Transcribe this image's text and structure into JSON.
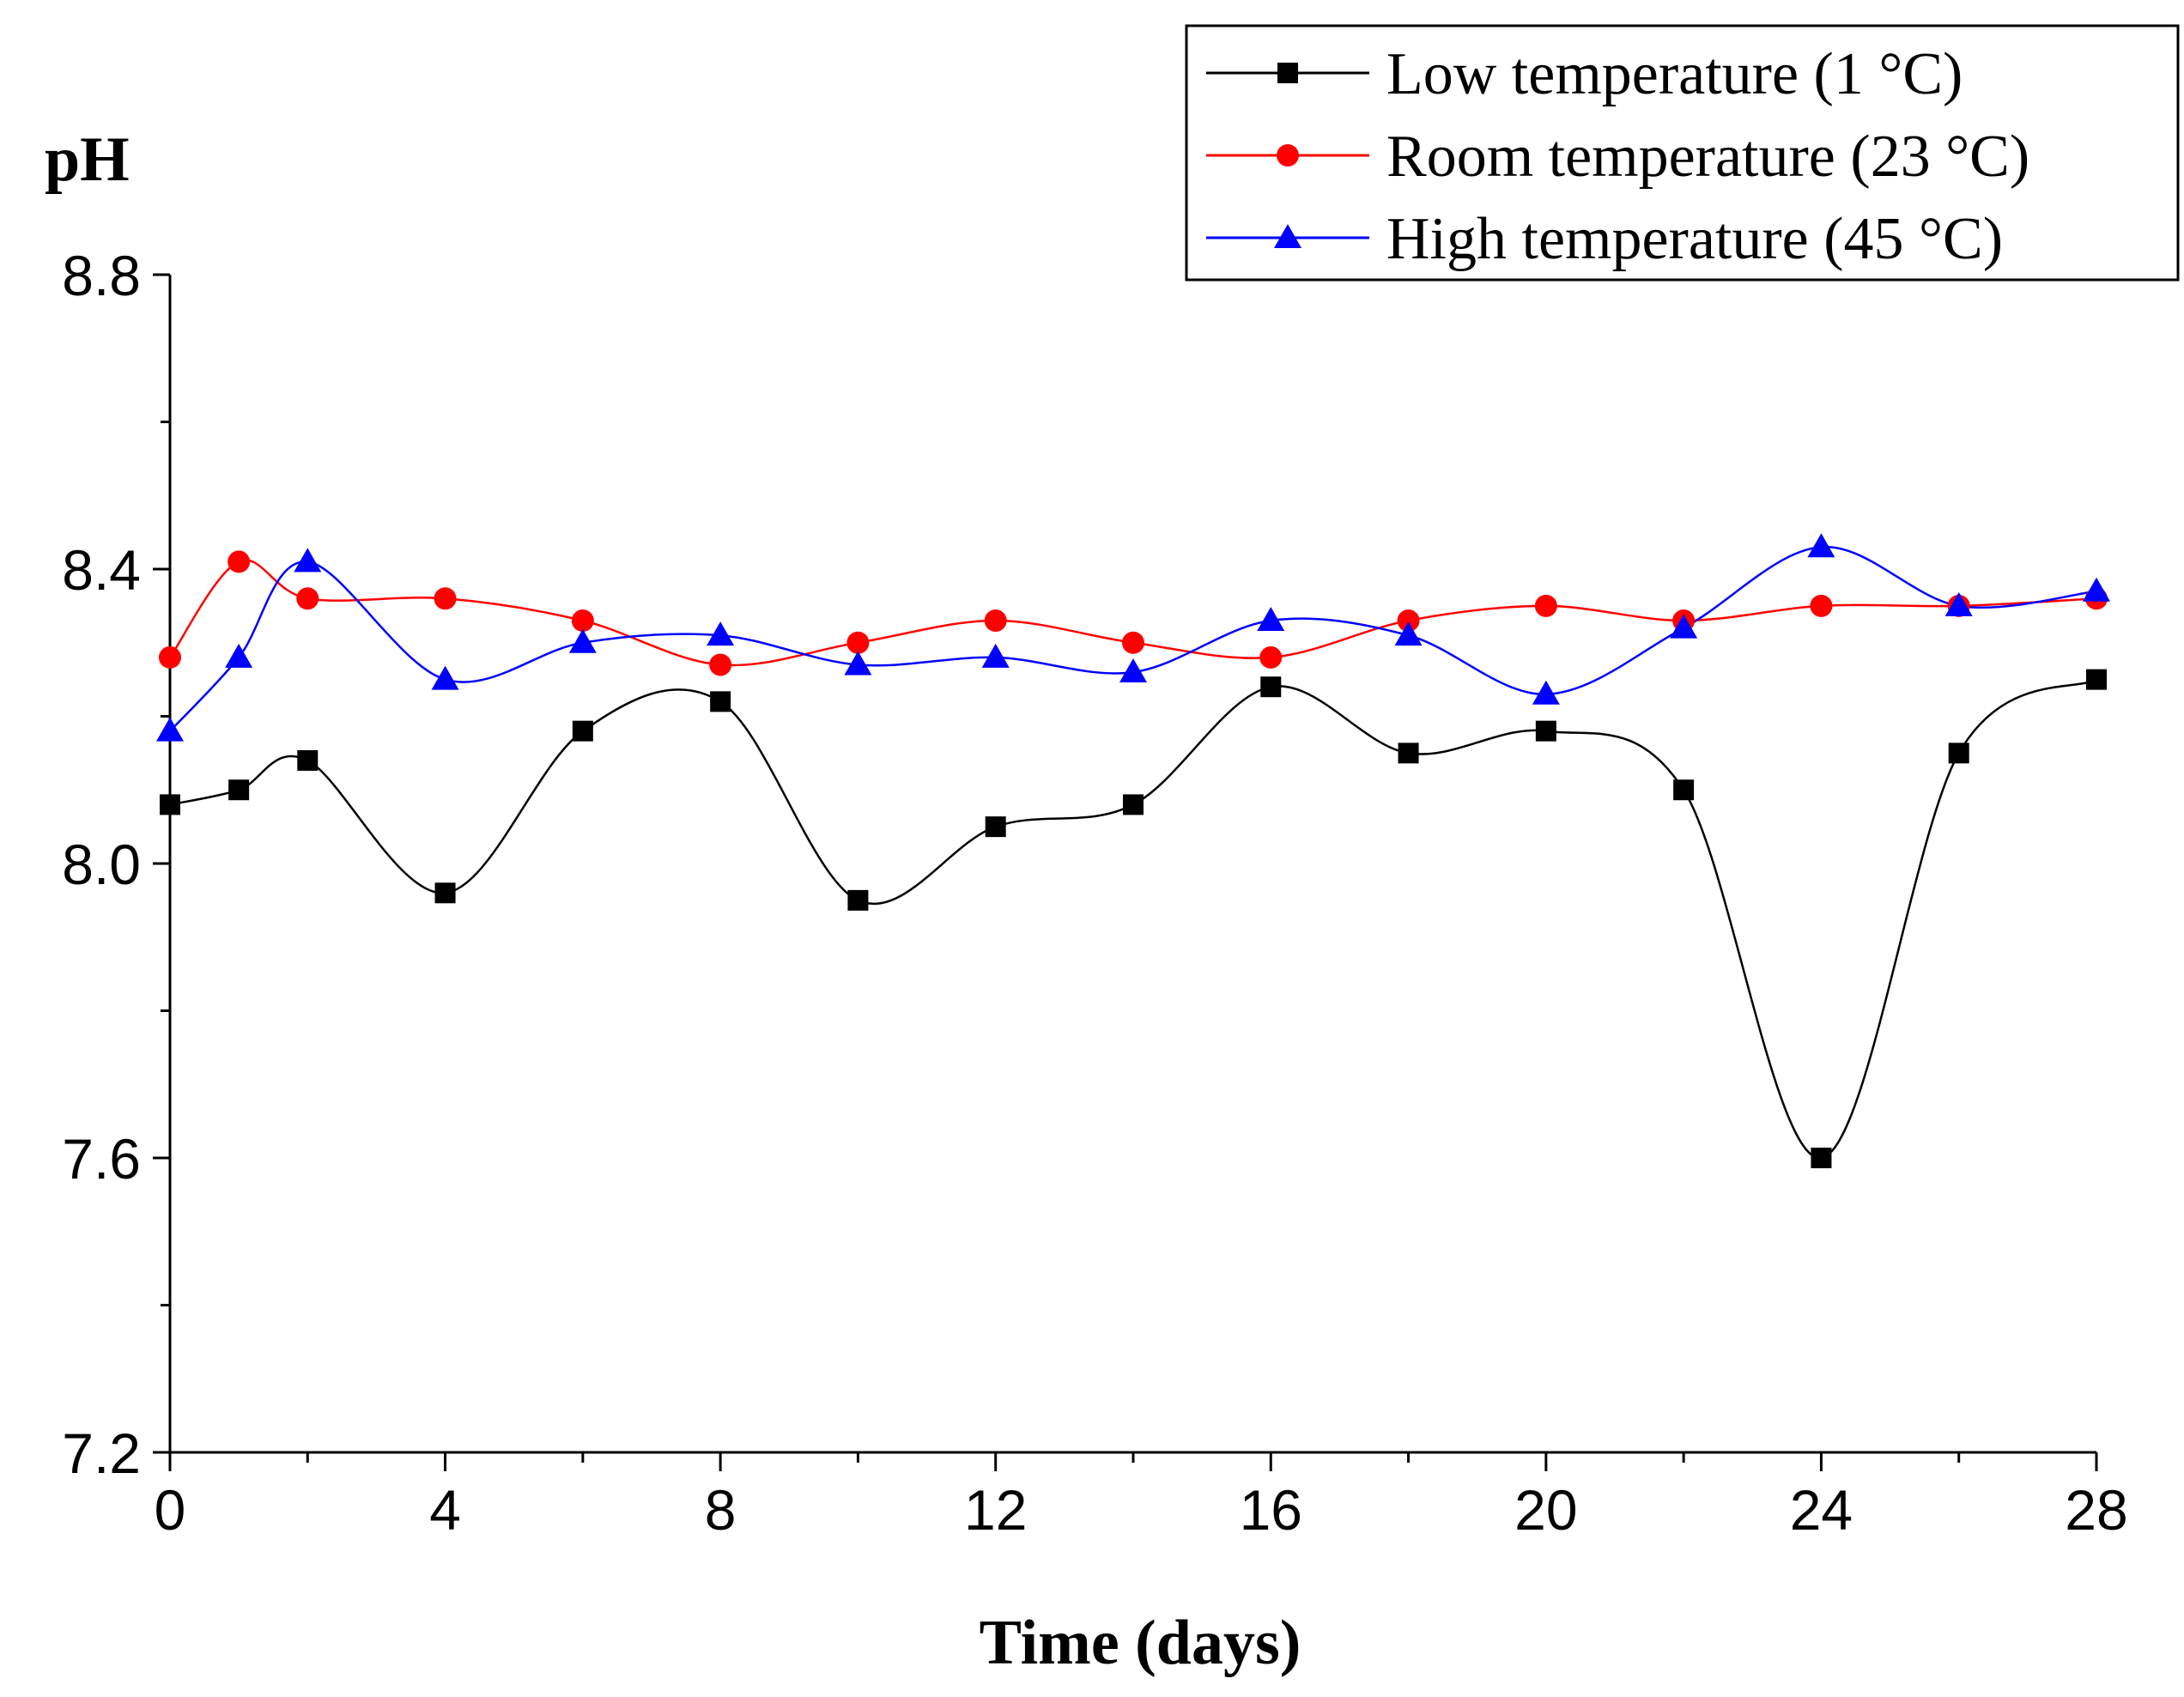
{
  "chart_data": {
    "type": "line",
    "title": "",
    "xlabel": "Time (days)",
    "ylabel": "pH",
    "xlim": [
      0,
      28
    ],
    "ylim": [
      7.2,
      8.8
    ],
    "xticks": [
      "0",
      "4",
      "8",
      "12",
      "16",
      "20",
      "24",
      "28"
    ],
    "yticks": [
      "7.2",
      "7.6",
      "8.0",
      "8.4",
      "8.8"
    ],
    "grid": false,
    "legend_position": "top-right",
    "series": [
      {
        "name": "Low temperature (1 °C)",
        "color": "#000000",
        "marker": "square",
        "x": [
          0,
          1,
          2,
          4,
          6,
          8,
          10,
          12,
          14,
          16,
          18,
          20,
          22,
          24,
          26,
          28
        ],
        "y": [
          8.08,
          8.1,
          8.14,
          7.96,
          8.18,
          8.22,
          7.95,
          8.05,
          8.08,
          8.24,
          8.15,
          8.18,
          8.1,
          7.6,
          8.15,
          8.25
        ]
      },
      {
        "name": "Room temperature (23 °C)",
        "color": "#ff0000",
        "marker": "circle",
        "x": [
          0,
          1,
          2,
          4,
          6,
          8,
          10,
          12,
          14,
          16,
          18,
          20,
          22,
          24,
          26,
          28
        ],
        "y": [
          8.28,
          8.41,
          8.36,
          8.36,
          8.33,
          8.27,
          8.3,
          8.33,
          8.3,
          8.28,
          8.33,
          8.35,
          8.33,
          8.35,
          8.35,
          8.36
        ]
      },
      {
        "name": "High temperature (45 °C)",
        "color": "#0000ff",
        "marker": "triangle",
        "x": [
          0,
          1,
          2,
          4,
          6,
          8,
          10,
          12,
          14,
          16,
          18,
          20,
          22,
          24,
          26,
          28
        ],
        "y": [
          8.18,
          8.28,
          8.41,
          8.25,
          8.3,
          8.31,
          8.27,
          8.28,
          8.26,
          8.33,
          8.31,
          8.23,
          8.32,
          8.43,
          8.35,
          8.37
        ]
      }
    ]
  }
}
